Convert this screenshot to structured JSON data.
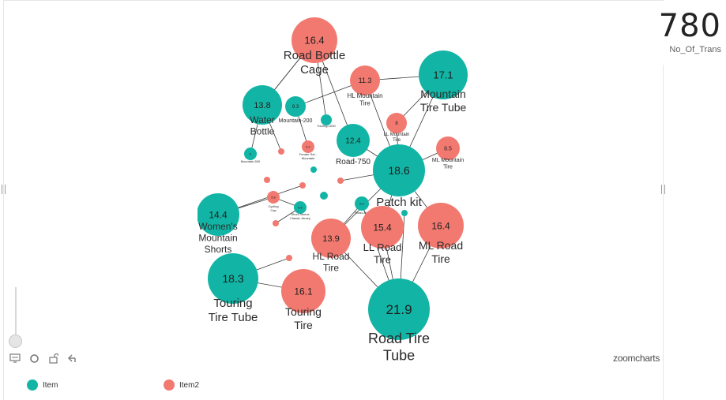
{
  "kpi": {
    "value": "780",
    "label": "No_Of_Trans"
  },
  "colors": {
    "item": "#12b5a5",
    "item2": "#f27970"
  },
  "legend": [
    {
      "label": "Item",
      "color": "#12b5a5"
    },
    {
      "label": "Item2",
      "color": "#f27970"
    }
  ],
  "brand": "zoomcharts",
  "toolbar": [
    "display-icon",
    "refresh-icon",
    "unlock-icon",
    "back-icon"
  ],
  "graph": {
    "nodes": [
      {
        "id": "road-bottle-cage",
        "group": "item2",
        "value": "16.4",
        "label": [
          "Road Bottle",
          "Cage"
        ]
      },
      {
        "id": "hl-mountain-tire",
        "group": "item2",
        "value": "11.3",
        "label": [
          "HL Mountain",
          "Tire"
        ]
      },
      {
        "id": "mountain-tire-tube",
        "group": "item",
        "value": "17.1",
        "label": [
          "Mountain",
          "Tire Tube"
        ]
      },
      {
        "id": "water-bottle",
        "group": "item",
        "value": "13.8",
        "label": [
          "Water",
          "Bottle"
        ]
      },
      {
        "id": "mountain-200",
        "group": "item",
        "value": "9.3",
        "label": [
          "Mountain-200"
        ]
      },
      {
        "id": "touring-1000",
        "group": "item",
        "value": "",
        "label": [
          "Touring-1000"
        ]
      },
      {
        "id": "ll-mountain-tire",
        "group": "item2",
        "value": "8",
        "label": [
          "LL Mountain",
          "Tire"
        ]
      },
      {
        "id": "road-750",
        "group": "item",
        "value": "12.4",
        "label": [
          "Road-750"
        ]
      },
      {
        "id": "ml-mountain-tire",
        "group": "item2",
        "value": "8.5",
        "label": [
          "ML Mountain",
          "Tire"
        ]
      },
      {
        "id": "mountain-500",
        "group": "item",
        "value": "6",
        "label": [
          "Mountain-500"
        ]
      },
      {
        "id": "fender-set-mountain",
        "group": "item2",
        "value": "6.2",
        "label": [
          "Fender Set -",
          "Mountain"
        ]
      },
      {
        "id": "patch-kit",
        "group": "item",
        "value": "18.6",
        "label": [
          "Patch kit"
        ]
      },
      {
        "id": "cycling-cap",
        "group": "item2",
        "value": "5.8",
        "label": [
          "Cycling",
          "Cap"
        ]
      },
      {
        "id": "short-sleeve-classic-jersey",
        "group": "item",
        "value": "5.6",
        "label": [
          "Short-Sleeve",
          "Classic Jersey"
        ]
      },
      {
        "id": "road-350",
        "group": "item",
        "value": "6.2",
        "label": [
          "Road-350"
        ]
      },
      {
        "id": "womens-mountain-shorts",
        "group": "item",
        "value": "14.4",
        "label": [
          "Women's",
          "Mountain",
          "Shorts"
        ]
      },
      {
        "id": "hl-road-tire",
        "group": "item2",
        "value": "13.9",
        "label": [
          "HL Road",
          "Tire"
        ]
      },
      {
        "id": "ll-road-tire",
        "group": "item2",
        "value": "15.4",
        "label": [
          "LL Road",
          "Tire"
        ]
      },
      {
        "id": "ml-road-tire",
        "group": "item2",
        "value": "16.4",
        "label": [
          "ML Road",
          "Tire"
        ]
      },
      {
        "id": "touring-tire-tube",
        "group": "item",
        "value": "18.3",
        "label": [
          "Touring",
          "Tire Tube"
        ]
      },
      {
        "id": "touring-tire",
        "group": "item2",
        "value": "16.1",
        "label": [
          "Touring",
          "Tire"
        ]
      },
      {
        "id": "road-tire-tube",
        "group": "item",
        "value": "21.9",
        "label": [
          "Road Tire",
          "Tube"
        ]
      },
      {
        "id": "small-item2-a",
        "group": "item2",
        "value": "",
        "label": []
      },
      {
        "id": "small-item-a",
        "group": "item",
        "value": "",
        "label": []
      },
      {
        "id": "small-item2-b",
        "group": "item2",
        "value": "",
        "label": []
      },
      {
        "id": "small-item2-c",
        "group": "item2",
        "value": "",
        "label": []
      },
      {
        "id": "small-item2-d",
        "group": "item2",
        "value": "",
        "label": []
      },
      {
        "id": "small-item2-e",
        "group": "item2",
        "value": "",
        "label": []
      },
      {
        "id": "small-item-b",
        "group": "item",
        "value": "",
        "label": []
      },
      {
        "id": "small-item-c",
        "group": "item",
        "value": "",
        "label": []
      },
      {
        "id": "small-item2-f",
        "group": "item2",
        "value": "",
        "label": []
      }
    ],
    "edges": [
      [
        "road-bottle-cage",
        "water-bottle"
      ],
      [
        "road-bottle-cage",
        "road-750"
      ],
      [
        "road-bottle-cage",
        "touring-1000"
      ],
      [
        "hl-mountain-tire",
        "mountain-tire-tube"
      ],
      [
        "hl-mountain-tire",
        "mountain-200"
      ],
      [
        "hl-mountain-tire",
        "patch-kit"
      ],
      [
        "mountain-tire-tube",
        "ll-mountain-tire"
      ],
      [
        "ll-mountain-tire",
        "patch-kit"
      ],
      [
        "ml-mountain-tire",
        "patch-kit"
      ],
      [
        "road-750",
        "patch-kit"
      ],
      [
        "patch-kit",
        "ll-road-tire"
      ],
      [
        "patch-kit",
        "ml-road-tire"
      ],
      [
        "patch-kit",
        "hl-road-tire"
      ],
      [
        "patch-kit",
        "small-item2-d"
      ],
      [
        "patch-kit",
        "mountain-tire-tube"
      ],
      [
        "road-tire-tube",
        "hl-road-tire"
      ],
      [
        "road-tire-tube",
        "ll-road-tire"
      ],
      [
        "road-tire-tube",
        "ml-road-tire"
      ],
      [
        "road-tire-tube",
        "road-350"
      ],
      [
        "road-tire-tube",
        "small-item-c"
      ],
      [
        "touring-tire-tube",
        "touring-tire"
      ],
      [
        "touring-tire-tube",
        "small-item2-f"
      ],
      [
        "water-bottle",
        "mountain-500"
      ],
      [
        "water-bottle",
        "small-item2-a"
      ],
      [
        "water-bottle",
        "road-bottle-cage"
      ],
      [
        "mountain-200",
        "fender-set-mountain"
      ],
      [
        "womens-mountain-shorts",
        "cycling-cap"
      ],
      [
        "womens-mountain-shorts",
        "small-item2-c"
      ],
      [
        "cycling-cap",
        "short-sleeve-classic-jersey"
      ],
      [
        "short-sleeve-classic-jersey",
        "small-item2-e"
      ],
      [
        "hl-road-tire",
        "road-350"
      ]
    ]
  }
}
